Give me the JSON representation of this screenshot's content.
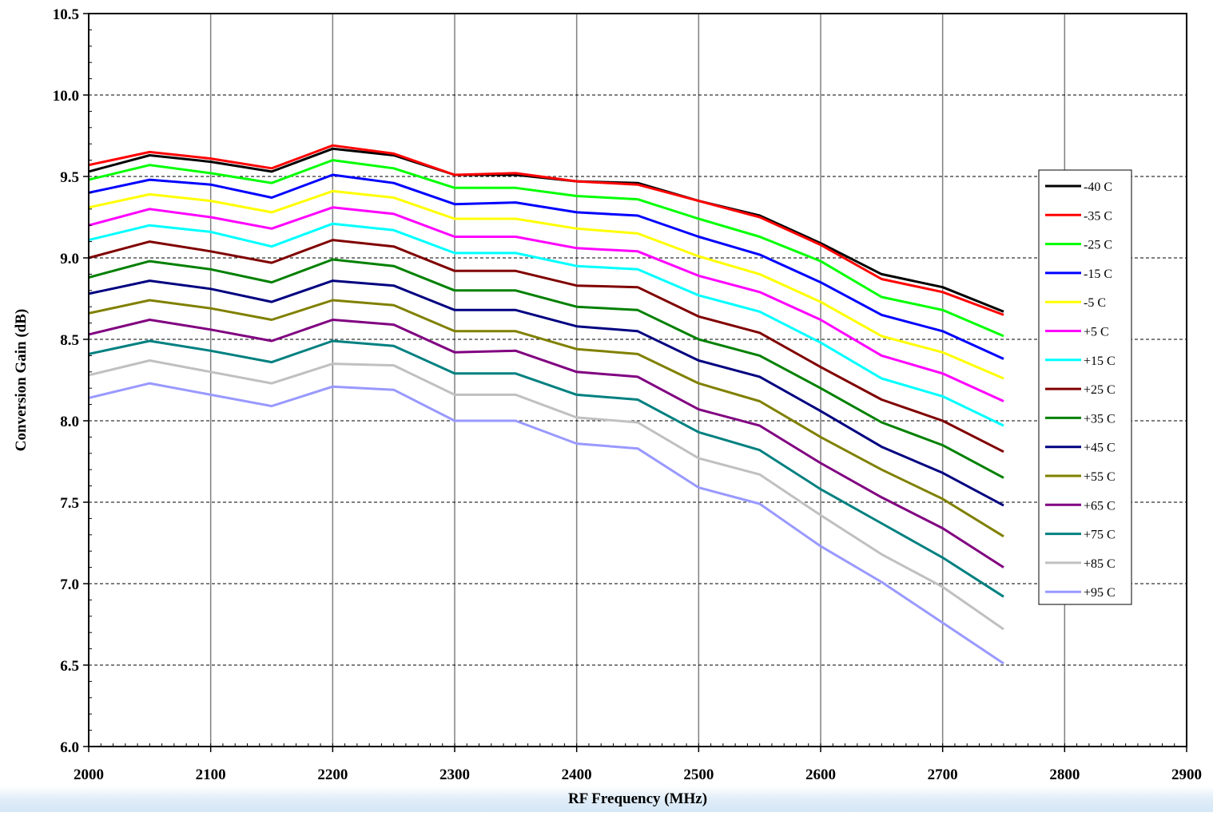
{
  "chart_data": {
    "type": "line",
    "title": "",
    "xlabel": "RF Frequency (MHz)",
    "ylabel": "Conversion Gain (dB)",
    "xlim": [
      2000,
      2900
    ],
    "ylim": [
      6.0,
      10.5
    ],
    "x_ticks": [
      2000,
      2100,
      2200,
      2300,
      2400,
      2500,
      2600,
      2700,
      2800,
      2900
    ],
    "y_ticks": [
      6.0,
      6.5,
      7.0,
      7.5,
      8.0,
      8.5,
      9.0,
      9.5,
      10.0,
      10.5
    ],
    "x_tick_labels": [
      "2000",
      "2100",
      "2200",
      "2300",
      "2400",
      "2500",
      "2600",
      "2700",
      "2800",
      "2900"
    ],
    "y_tick_labels": [
      "6.0",
      "6.5",
      "7.0",
      "7.5",
      "8.0",
      "8.5",
      "9.0",
      "9.5",
      "10.0",
      "10.5"
    ],
    "grid": "vertical solid gray, horizontal dashed black",
    "legend_position": "right",
    "x": [
      2000,
      2050,
      2100,
      2150,
      2200,
      2250,
      2300,
      2350,
      2400,
      2450,
      2500,
      2550,
      2600,
      2650,
      2700,
      2750
    ],
    "series": [
      {
        "name": "-40 C",
        "color": "#000000",
        "values": [
          9.53,
          9.63,
          9.59,
          9.53,
          9.67,
          9.63,
          9.51,
          9.51,
          9.47,
          9.46,
          9.35,
          9.26,
          9.09,
          8.9,
          8.82,
          8.67
        ]
      },
      {
        "name": "-35 C",
        "color": "#ff0000",
        "values": [
          9.57,
          9.65,
          9.61,
          9.55,
          9.69,
          9.64,
          9.51,
          9.52,
          9.47,
          9.45,
          9.35,
          9.25,
          9.08,
          8.87,
          8.79,
          8.65
        ]
      },
      {
        "name": "-25 C",
        "color": "#00ff00",
        "values": [
          9.48,
          9.57,
          9.52,
          9.46,
          9.6,
          9.55,
          9.43,
          9.43,
          9.38,
          9.36,
          9.24,
          9.13,
          8.98,
          8.76,
          8.68,
          8.52
        ]
      },
      {
        "name": "-15 C",
        "color": "#0000ff",
        "values": [
          9.4,
          9.48,
          9.45,
          9.37,
          9.51,
          9.46,
          9.33,
          9.34,
          9.28,
          9.26,
          9.13,
          9.02,
          8.85,
          8.65,
          8.55,
          8.38
        ]
      },
      {
        "name": "-5 C",
        "color": "#ffff00",
        "values": [
          9.31,
          9.39,
          9.35,
          9.28,
          9.41,
          9.37,
          9.24,
          9.24,
          9.18,
          9.15,
          9.01,
          8.9,
          8.73,
          8.52,
          8.42,
          8.26
        ]
      },
      {
        "name": "+5 C",
        "color": "#ff00ff",
        "values": [
          9.2,
          9.3,
          9.25,
          9.18,
          9.31,
          9.27,
          9.13,
          9.13,
          9.06,
          9.04,
          8.89,
          8.79,
          8.62,
          8.4,
          8.29,
          8.12
        ]
      },
      {
        "name": "+15 C",
        "color": "#00ffff",
        "values": [
          9.11,
          9.2,
          9.16,
          9.07,
          9.21,
          9.17,
          9.03,
          9.03,
          8.95,
          8.93,
          8.77,
          8.67,
          8.48,
          8.26,
          8.15,
          7.97
        ]
      },
      {
        "name": "+25 C",
        "color": "#800000",
        "values": [
          9.0,
          9.1,
          9.04,
          8.97,
          9.11,
          9.07,
          8.92,
          8.92,
          8.83,
          8.82,
          8.64,
          8.54,
          8.33,
          8.13,
          8.0,
          7.81
        ]
      },
      {
        "name": "+35 C",
        "color": "#008000",
        "values": [
          8.88,
          8.98,
          8.93,
          8.85,
          8.99,
          8.95,
          8.8,
          8.8,
          8.7,
          8.68,
          8.5,
          8.4,
          8.2,
          7.99,
          7.85,
          7.65
        ]
      },
      {
        "name": "+45 C",
        "color": "#000080",
        "values": [
          8.78,
          8.86,
          8.81,
          8.73,
          8.86,
          8.83,
          8.68,
          8.68,
          8.58,
          8.55,
          8.37,
          8.27,
          8.06,
          7.84,
          7.68,
          7.48
        ]
      },
      {
        "name": "+55 C",
        "color": "#808000",
        "values": [
          8.66,
          8.74,
          8.69,
          8.62,
          8.74,
          8.71,
          8.55,
          8.55,
          8.44,
          8.41,
          8.23,
          8.12,
          7.9,
          7.7,
          7.52,
          7.29
        ]
      },
      {
        "name": "+65 C",
        "color": "#800080",
        "values": [
          8.53,
          8.62,
          8.56,
          8.49,
          8.62,
          8.59,
          8.42,
          8.43,
          8.3,
          8.27,
          8.07,
          7.97,
          7.74,
          7.53,
          7.34,
          7.1
        ]
      },
      {
        "name": "+75 C",
        "color": "#008080",
        "values": [
          8.41,
          8.49,
          8.43,
          8.36,
          8.49,
          8.46,
          8.29,
          8.29,
          8.16,
          8.13,
          7.93,
          7.82,
          7.58,
          7.37,
          7.16,
          6.92
        ]
      },
      {
        "name": "+85 C",
        "color": "#c0c0c0",
        "values": [
          8.28,
          8.37,
          8.3,
          8.23,
          8.35,
          8.34,
          8.16,
          8.16,
          8.02,
          7.99,
          7.77,
          7.67,
          7.42,
          7.18,
          6.98,
          6.72
        ]
      },
      {
        "name": "+95 C",
        "color": "#9999ff",
        "values": [
          8.14,
          8.23,
          8.16,
          8.09,
          8.21,
          8.19,
          8.0,
          8.0,
          7.86,
          7.83,
          7.59,
          7.49,
          7.23,
          7.01,
          6.76,
          6.51
        ]
      }
    ]
  }
}
